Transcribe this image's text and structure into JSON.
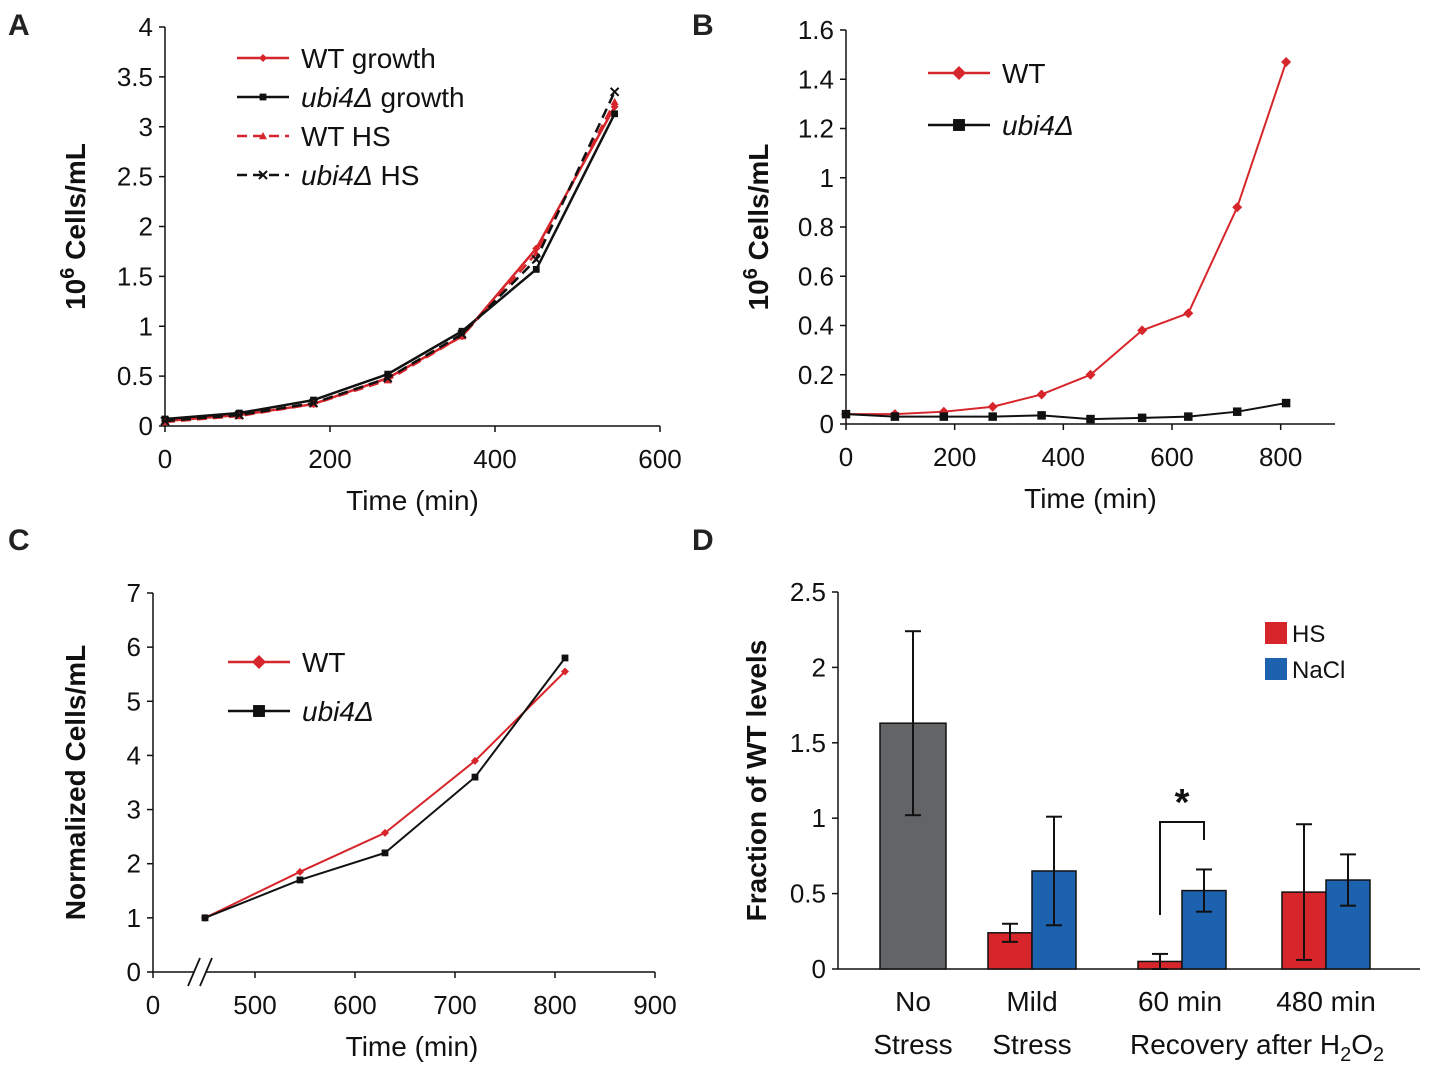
{
  "panels": {
    "a": "A",
    "b": "B",
    "c": "C",
    "d": "D"
  },
  "chart_data": [
    {
      "panel": "A",
      "type": "line",
      "xlabel": "Time (min)",
      "ylabel": {
        "base": "10",
        "sup": "6",
        "rest": " Cells/mL"
      },
      "xlim": [
        0,
        600
      ],
      "ylim": [
        0,
        4
      ],
      "xticks": [
        0,
        200,
        400,
        600
      ],
      "yticks": [
        0,
        0.5,
        1,
        1.5,
        2,
        2.5,
        3,
        3.5,
        4
      ],
      "legend_position": "top-center",
      "series": [
        {
          "name": "WT growth",
          "color": "#d7262b",
          "dash": "solid",
          "marker": "diamond",
          "x": [
            0,
            90,
            180,
            270,
            360,
            450,
            545
          ],
          "y": [
            0.05,
            0.11,
            0.22,
            0.48,
            0.9,
            1.78,
            3.2
          ]
        },
        {
          "name": "growth",
          "name_italic": "ubi4Δ",
          "color": "#111111",
          "dash": "solid",
          "marker": "square",
          "x": [
            0,
            90,
            180,
            270,
            360,
            450,
            545
          ],
          "y": [
            0.07,
            0.13,
            0.26,
            0.52,
            0.95,
            1.57,
            3.13
          ]
        },
        {
          "name": "WT HS",
          "color": "#d7262b",
          "dash": "dashed",
          "marker": "triangle",
          "x": [
            0,
            90,
            180,
            270,
            360,
            450,
            545
          ],
          "y": [
            0.04,
            0.1,
            0.22,
            0.46,
            0.9,
            1.73,
            3.25
          ]
        },
        {
          "name": "HS",
          "name_italic": "ubi4Δ",
          "color": "#111111",
          "dash": "dashed",
          "marker": "x",
          "x": [
            0,
            90,
            180,
            270,
            360,
            450,
            545
          ],
          "y": [
            0.05,
            0.11,
            0.23,
            0.48,
            0.92,
            1.67,
            3.35
          ]
        }
      ]
    },
    {
      "panel": "B",
      "type": "line",
      "xlabel": "Time (min)",
      "ylabel": {
        "base": "10",
        "sup": "6",
        "rest": " Cells/mL"
      },
      "xlim": [
        0,
        900
      ],
      "ylim": [
        0,
        1.6
      ],
      "xticks": [
        0,
        200,
        400,
        600,
        800
      ],
      "yticks": [
        0,
        0.2,
        0.4,
        0.6,
        0.8,
        1,
        1.2,
        1.4,
        1.6
      ],
      "legend_position": "top-left",
      "series": [
        {
          "name": "WT",
          "color": "#d7262b",
          "marker": "diamond",
          "x": [
            0,
            90,
            180,
            270,
            360,
            450,
            545,
            630,
            720,
            810
          ],
          "y": [
            0.04,
            0.04,
            0.05,
            0.07,
            0.12,
            0.2,
            0.38,
            0.45,
            0.88,
            1.47
          ]
        },
        {
          "name": "",
          "name_italic": "ubi4Δ",
          "color": "#111111",
          "marker": "square",
          "x": [
            0,
            90,
            180,
            270,
            360,
            450,
            545,
            630,
            720,
            810
          ],
          "y": [
            0.04,
            0.03,
            0.03,
            0.03,
            0.035,
            0.02,
            0.025,
            0.03,
            0.05,
            0.085
          ]
        }
      ]
    },
    {
      "panel": "C",
      "type": "line",
      "xlabel": "Time (min)",
      "ylabel": "Normalized Cells/mL",
      "xlim": [
        0,
        900
      ],
      "ylim": [
        0,
        7
      ],
      "xticks": [
        0,
        500,
        600,
        700,
        800,
        900
      ],
      "yticks": [
        0,
        1,
        2,
        3,
        4,
        5,
        6,
        7
      ],
      "axis_break": true,
      "legend_position": "top-left",
      "series": [
        {
          "name": "WT",
          "color": "#d7262b",
          "marker": "diamond",
          "x": [
            450,
            545,
            630,
            720,
            810
          ],
          "y": [
            1,
            1.85,
            2.57,
            3.9,
            5.55
          ]
        },
        {
          "name": "",
          "name_italic": "ubi4Δ",
          "color": "#111111",
          "marker": "square",
          "x": [
            450,
            545,
            630,
            720,
            810
          ],
          "y": [
            1,
            1.7,
            2.2,
            3.6,
            5.8
          ]
        }
      ]
    },
    {
      "panel": "D",
      "type": "bar",
      "ylabel": "Fraction of WT levels",
      "ylim": [
        0,
        2.5
      ],
      "yticks": [
        0,
        0.5,
        1,
        1.5,
        2,
        2.5
      ],
      "categories": [
        [
          "No",
          "Stress"
        ],
        [
          "Mild",
          "Stress"
        ],
        [
          "60 min",
          ""
        ],
        [
          "480 min",
          ""
        ]
      ],
      "xlabel_bottom": {
        "text": "Recovery after H",
        "sub": "2",
        "mid": "O",
        "sub2": "2"
      },
      "legend_position": "top-right",
      "single": {
        "color": "#636466",
        "value": 1.63,
        "err": 0.61
      },
      "series": [
        {
          "name": "HS",
          "color": "#d7262b",
          "values": [
            null,
            0.24,
            0.05,
            0.51
          ],
          "errors": [
            null,
            0.06,
            0.05,
            0.45
          ]
        },
        {
          "name": "NaCl",
          "color": "#1c62ae",
          "values": [
            null,
            0.65,
            0.52,
            0.59
          ],
          "errors": [
            null,
            0.36,
            0.14,
            0.17
          ]
        }
      ],
      "significance": "*"
    }
  ]
}
